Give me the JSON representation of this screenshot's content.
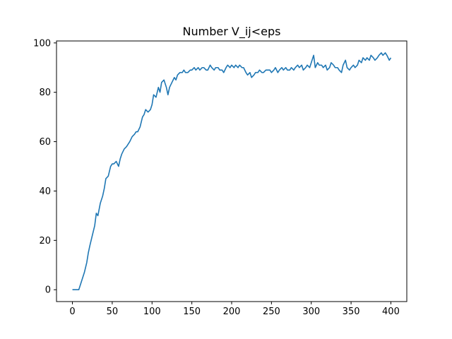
{
  "chart_data": {
    "type": "line",
    "title": "Number V_ij<eps",
    "xlabel": "",
    "ylabel": "",
    "xlim": [
      -20,
      420
    ],
    "ylim": [
      -4.8,
      100.8
    ],
    "xticks": [
      0,
      50,
      100,
      150,
      200,
      250,
      300,
      350,
      400
    ],
    "yticks": [
      0,
      20,
      40,
      60,
      80,
      100
    ],
    "grid": false,
    "line_color": "#1f77b4",
    "series": [
      {
        "x": [
          0,
          5,
          8,
          10,
          12,
          15,
          18,
          20,
          22,
          25,
          28,
          30,
          32,
          35,
          38,
          40,
          42,
          45,
          48,
          50,
          52,
          55,
          58,
          60,
          62,
          65,
          68,
          70,
          72,
          75,
          78,
          80,
          82,
          85,
          88,
          90,
          92,
          95,
          98,
          100,
          102,
          105,
          108,
          110,
          112,
          115,
          118,
          120,
          122,
          125,
          128,
          130,
          132,
          135,
          138,
          140,
          142,
          145,
          148,
          150,
          153,
          155,
          158,
          160,
          163,
          165,
          168,
          170,
          173,
          175,
          178,
          180,
          183,
          185,
          188,
          190,
          193,
          195,
          198,
          200,
          203,
          205,
          208,
          210,
          213,
          215,
          218,
          220,
          223,
          225,
          228,
          230,
          233,
          235,
          238,
          240,
          243,
          245,
          248,
          250,
          253,
          255,
          258,
          260,
          263,
          265,
          268,
          270,
          273,
          275,
          278,
          280,
          283,
          285,
          288,
          290,
          293,
          295,
          298,
          300,
          303,
          305,
          308,
          310,
          313,
          315,
          318,
          320,
          323,
          325,
          328,
          330,
          333,
          335,
          338,
          340,
          343,
          345,
          348,
          350,
          353,
          355,
          358,
          360,
          363,
          365,
          368,
          370,
          373,
          375,
          378,
          380,
          383,
          385,
          388,
          390,
          393,
          395,
          398,
          400
        ],
        "values": [
          0,
          0,
          0,
          2,
          4,
          7,
          11,
          15,
          18,
          22,
          26,
          31,
          30,
          35,
          38,
          41,
          45,
          46,
          50,
          51,
          51,
          52,
          50,
          53,
          55,
          57,
          58,
          59,
          60,
          62,
          63,
          64,
          64,
          66,
          70,
          71,
          73,
          72,
          73,
          75,
          79,
          78,
          82,
          80,
          84,
          85,
          82,
          79,
          82,
          84,
          86,
          85,
          87,
          88,
          88,
          89,
          88,
          88,
          89,
          89,
          90,
          89,
          90,
          89,
          90,
          90,
          89,
          89,
          91,
          90,
          89,
          90,
          90,
          89,
          89,
          88,
          90,
          91,
          90,
          91,
          90,
          91,
          90,
          91,
          90,
          90,
          88,
          87,
          88,
          86,
          87,
          88,
          88,
          89,
          88,
          88,
          89,
          89,
          89,
          88,
          89,
          90,
          88,
          89,
          90,
          89,
          90,
          89,
          89,
          90,
          89,
          90,
          91,
          90,
          91,
          89,
          90,
          91,
          90,
          92,
          95,
          90,
          92,
          91,
          91,
          90,
          91,
          89,
          90,
          92,
          91,
          90,
          90,
          89,
          88,
          91,
          93,
          90,
          89,
          90,
          91,
          90,
          91,
          93,
          92,
          94,
          93,
          94,
          93,
          95,
          94,
          93,
          94,
          95,
          96,
          95,
          96,
          95,
          93,
          94
        ]
      }
    ]
  }
}
